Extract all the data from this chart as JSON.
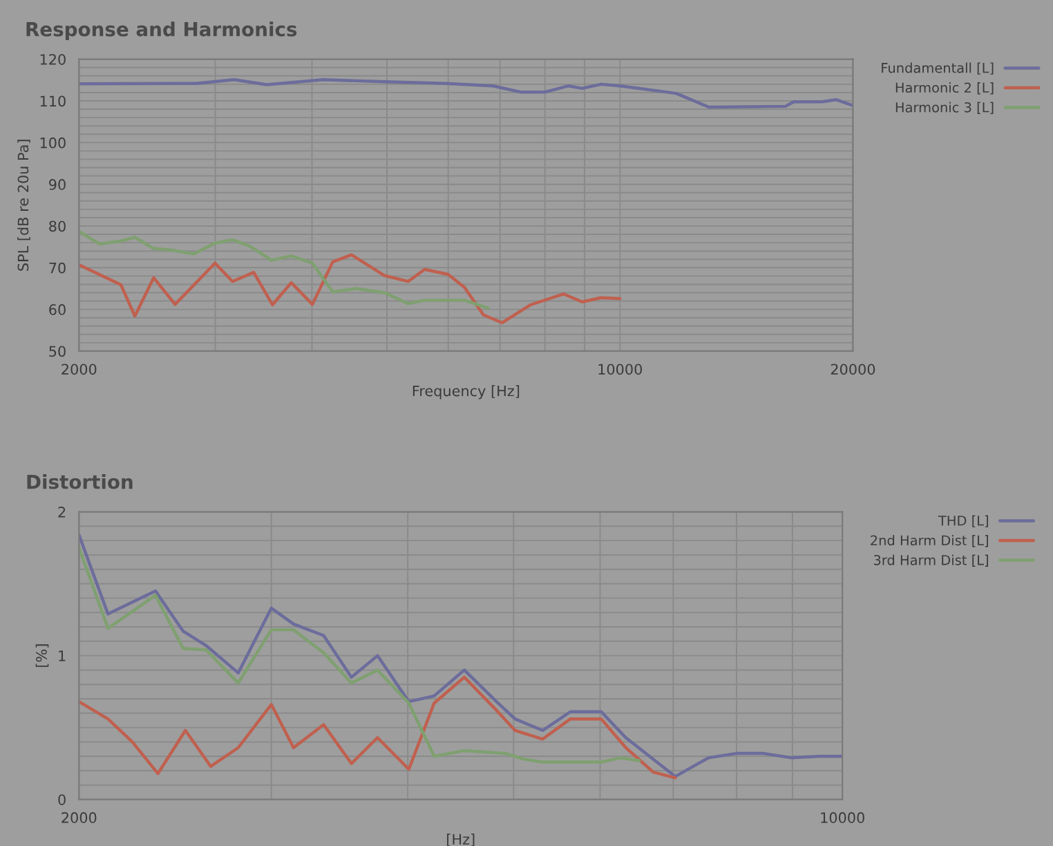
{
  "chart_data": [
    {
      "type": "line",
      "title": "Response and Harmonics",
      "xlabel": "Frequency [Hz]",
      "ylabel": "SPL [dB re 20u Pa]",
      "log": "x",
      "grid": true,
      "legend": "right",
      "marker": "none",
      "line_style": "solid",
      "xlim": [
        2000,
        20000
      ],
      "ylim": [
        50,
        120
      ],
      "xticks": [
        2000,
        {
          "value": 3000,
          "label": null
        },
        {
          "value": 4000,
          "label": null
        },
        {
          "value": 5000,
          "label": null
        },
        {
          "value": 6000,
          "label": null
        },
        {
          "value": 7000,
          "label": null
        },
        {
          "value": 8000,
          "label": null
        },
        {
          "value": 9000,
          "label": null
        },
        10000,
        20000
      ],
      "yticks": [
        50,
        {
          "value": 52,
          "label": null
        },
        {
          "value": 54,
          "label": null
        },
        {
          "value": 56,
          "label": null
        },
        {
          "value": 58,
          "label": null
        },
        60,
        {
          "value": 62,
          "label": null
        },
        {
          "value": 64,
          "label": null
        },
        {
          "value": 66,
          "label": null
        },
        {
          "value": 68,
          "label": null
        },
        70,
        {
          "value": 72,
          "label": null
        },
        {
          "value": 74,
          "label": null
        },
        {
          "value": 76,
          "label": null
        },
        {
          "value": 78,
          "label": null
        },
        80,
        {
          "value": 82,
          "label": null
        },
        {
          "value": 84,
          "label": null
        },
        {
          "value": 86,
          "label": null
        },
        {
          "value": 88,
          "label": null
        },
        90,
        {
          "value": 92,
          "label": null
        },
        {
          "value": 94,
          "label": null
        },
        {
          "value": 96,
          "label": null
        },
        {
          "value": 98,
          "label": null
        },
        100,
        {
          "value": 102,
          "label": null
        },
        {
          "value": 104,
          "label": null
        },
        {
          "value": 106,
          "label": null
        },
        {
          "value": 108,
          "label": null
        },
        110,
        {
          "value": 112,
          "label": null
        },
        {
          "value": 114,
          "label": null
        },
        {
          "value": 116,
          "label": null
        },
        {
          "value": 118,
          "label": null
        },
        120
      ],
      "series": [
        {
          "name": "Fundamentall [L]",
          "color": "#6c6c9c",
          "x": [
            2000,
            2835,
            3175,
            3497,
            4139,
            4964,
            5956,
            6852,
            7452,
            7992,
            8571,
            8937,
            9455,
            10000,
            11826,
            13030,
            16356,
            16770,
            18240,
            19020,
            20000
          ],
          "values": [
            114.1,
            114.2,
            115.1,
            113.9,
            115.1,
            114.6,
            114.2,
            113.6,
            112.1,
            112.1,
            113.6,
            113.0,
            114.0,
            113.6,
            111.8,
            108.5,
            108.7,
            109.8,
            109.8,
            110.3,
            108.9
          ]
        },
        {
          "name": "Harmonic 2 [L]",
          "color": "#c0604f",
          "x": [
            2000,
            2266,
            2362,
            2498,
            2662,
            2998,
            3158,
            3363,
            3557,
            3761,
            4005,
            4255,
            4500,
            4965,
            5325,
            5593,
            5998,
            6297,
            6661,
            7044,
            7663,
            8453,
            8937,
            9455,
            10000
          ],
          "values": [
            70.7,
            65.9,
            58.4,
            67.6,
            61.2,
            71.1,
            66.7,
            68.9,
            61.1,
            66.4,
            61.2,
            71.4,
            73.1,
            68.1,
            66.7,
            69.6,
            68.4,
            65.3,
            58.7,
            56.8,
            61.1,
            63.7,
            61.8,
            62.8,
            62.6
          ]
        },
        {
          "name": "Harmonic 3 [L]",
          "color": "#7fa070",
          "x": [
            2000,
            2125,
            2266,
            2362,
            2498,
            2643,
            2813,
            2998,
            3158,
            3329,
            3546,
            3761,
            4005,
            4255,
            4563,
            4965,
            5325,
            5593,
            6297,
            6756
          ],
          "values": [
            78.7,
            75.7,
            76.4,
            77.3,
            74.6,
            74.2,
            73.3,
            75.9,
            76.7,
            75.1,
            71.8,
            72.8,
            71.1,
            64.2,
            65.0,
            64.0,
            61.4,
            62.2,
            62.2,
            60.3
          ]
        }
      ]
    },
    {
      "type": "line",
      "title": "Distortion",
      "xlabel": "[Hz]",
      "ylabel": "[%]",
      "log": "x",
      "grid": true,
      "legend": "right",
      "marker": "none",
      "line_style": "solid",
      "xlim": [
        2000,
        10000
      ],
      "ylim": [
        0,
        2
      ],
      "xticks": [
        2000,
        {
          "value": 3000,
          "label": null
        },
        {
          "value": 4000,
          "label": null
        },
        {
          "value": 5000,
          "label": null
        },
        {
          "value": 6000,
          "label": null
        },
        {
          "value": 7000,
          "label": null
        },
        {
          "value": 8000,
          "label": null
        },
        {
          "value": 9000,
          "label": null
        },
        10000
      ],
      "yticks": [
        0,
        {
          "value": 0.1,
          "label": null
        },
        {
          "value": 0.2,
          "label": null
        },
        {
          "value": 0.3,
          "label": null
        },
        {
          "value": 0.4,
          "label": null
        },
        {
          "value": 0.5,
          "label": null
        },
        {
          "value": 0.6,
          "label": null
        },
        {
          "value": 0.7,
          "label": null
        },
        {
          "value": 0.8,
          "label": null
        },
        {
          "value": 0.9,
          "label": null
        },
        1,
        {
          "value": 1.1,
          "label": null
        },
        {
          "value": 1.2,
          "label": null
        },
        {
          "value": 1.3,
          "label": null
        },
        {
          "value": 1.4,
          "label": null
        },
        {
          "value": 1.5,
          "label": null
        },
        {
          "value": 1.6,
          "label": null
        },
        {
          "value": 1.7,
          "label": null
        },
        {
          "value": 1.8,
          "label": null
        },
        {
          "value": 1.9,
          "label": null
        },
        2
      ],
      "series": [
        {
          "name": "THD [L]",
          "color": "#6c6c9c",
          "x": [
            2000,
            2126,
            2350,
            2491,
            2615,
            2798,
            3000,
            3144,
            3350,
            3552,
            3753,
            4009,
            4229,
            4506,
            4823,
            5015,
            5316,
            5636,
            6014,
            6334,
            6712,
            7031,
            7541,
            7994,
            8474,
            8982,
            9520,
            10000
          ],
          "values": [
            1.84,
            1.29,
            1.45,
            1.17,
            1.07,
            0.88,
            1.33,
            1.22,
            1.14,
            0.85,
            1.0,
            0.68,
            0.72,
            0.9,
            0.68,
            0.56,
            0.48,
            0.61,
            0.61,
            0.43,
            0.28,
            0.16,
            0.29,
            0.32,
            0.32,
            0.29,
            0.3,
            0.3
          ]
        },
        {
          "name": "2nd Harm Dist [L]",
          "color": "#c0604f",
          "x": [
            2000,
            2126,
            2238,
            2362,
            2503,
            2640,
            2798,
            3000,
            3144,
            3350,
            3552,
            3753,
            4009,
            4229,
            4506,
            4823,
            5015,
            5316,
            5636,
            6014,
            6334,
            6712,
            7031
          ],
          "values": [
            0.68,
            0.56,
            0.4,
            0.18,
            0.48,
            0.23,
            0.36,
            0.66,
            0.36,
            0.52,
            0.25,
            0.43,
            0.21,
            0.67,
            0.85,
            0.62,
            0.48,
            0.42,
            0.56,
            0.56,
            0.36,
            0.19,
            0.15
          ]
        },
        {
          "name": "3rd Harm Dist [L]",
          "color": "#7fa070",
          "x": [
            2000,
            2126,
            2350,
            2491,
            2615,
            2798,
            3000,
            3144,
            3350,
            3552,
            3753,
            4009,
            4229,
            4506,
            4917,
            5112,
            5316,
            5636,
            6014,
            6267,
            6517
          ],
          "values": [
            1.75,
            1.19,
            1.42,
            1.05,
            1.04,
            0.81,
            1.18,
            1.18,
            1.02,
            0.81,
            0.9,
            0.67,
            0.3,
            0.34,
            0.32,
            0.28,
            0.26,
            0.26,
            0.26,
            0.29,
            0.27
          ]
        }
      ]
    }
  ]
}
